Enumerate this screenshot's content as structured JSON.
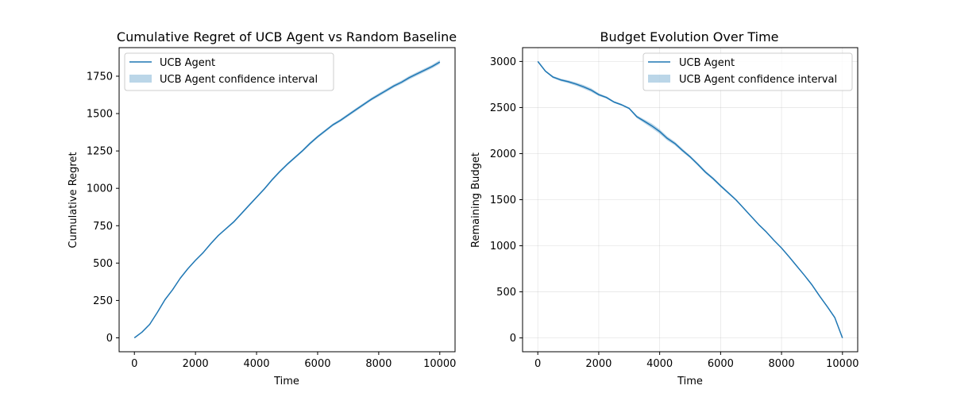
{
  "chart_data": [
    {
      "type": "line",
      "title": "Cumulative Regret of UCB Agent vs Random Baseline",
      "xlabel": "Time",
      "ylabel": "Cumulative Regret",
      "xlim": [
        -500,
        10500
      ],
      "ylim": [
        -93,
        1941
      ],
      "xticks": [
        0,
        2000,
        4000,
        6000,
        8000,
        10000
      ],
      "yticks": [
        0,
        250,
        500,
        750,
        1000,
        1250,
        1500,
        1750
      ],
      "grid": false,
      "legend_position": "upper left",
      "legend": [
        "UCB Agent",
        "UCB Agent confidence interval"
      ],
      "series": [
        {
          "name": "UCB Agent",
          "color": "#1f77b4",
          "band_color": "#1f77b4",
          "x": [
            0,
            250,
            500,
            750,
            1000,
            1250,
            1500,
            1750,
            2000,
            2250,
            2500,
            2750,
            3000,
            3250,
            3500,
            3750,
            4000,
            4250,
            4500,
            4750,
            5000,
            5250,
            5500,
            5750,
            6000,
            6250,
            6500,
            6750,
            7000,
            7250,
            7500,
            7750,
            8000,
            8250,
            8500,
            8750,
            9000,
            9250,
            9500,
            9750,
            10000
          ],
          "values": [
            0,
            38,
            90,
            170,
            255,
            322,
            398,
            462,
            518,
            570,
            630,
            685,
            730,
            775,
            830,
            885,
            940,
            995,
            1055,
            1110,
            1160,
            1205,
            1250,
            1300,
            1345,
            1385,
            1425,
            1455,
            1490,
            1525,
            1560,
            1595,
            1625,
            1655,
            1685,
            1710,
            1740,
            1765,
            1790,
            1815,
            1845
          ],
          "band_halfwidth": [
            0,
            2,
            3,
            3,
            4,
            4,
            5,
            5,
            5,
            6,
            6,
            6,
            6,
            7,
            7,
            7,
            7,
            7,
            8,
            8,
            8,
            8,
            8,
            9,
            9,
            9,
            9,
            9,
            10,
            10,
            10,
            10,
            11,
            11,
            11,
            11,
            12,
            12,
            12,
            12,
            13
          ]
        }
      ]
    },
    {
      "type": "line",
      "title": "Budget Evolution Over Time",
      "xlabel": "Time",
      "ylabel": "Remaining Budget",
      "xlim": [
        -500,
        10500
      ],
      "ylim": [
        -150,
        3150
      ],
      "xticks": [
        0,
        2000,
        4000,
        6000,
        8000,
        10000
      ],
      "yticks": [
        0,
        500,
        1000,
        1500,
        2000,
        2500,
        3000
      ],
      "grid": true,
      "legend_position": "upper right",
      "legend": [
        "UCB Agent",
        "UCB Agent confidence interval"
      ],
      "series": [
        {
          "name": "UCB Agent",
          "color": "#1f77b4",
          "band_color": "#1f77b4",
          "x": [
            0,
            250,
            500,
            750,
            1000,
            1250,
            1500,
            1750,
            2000,
            2250,
            2500,
            2750,
            3000,
            3250,
            3500,
            3750,
            4000,
            4250,
            4500,
            4750,
            5000,
            5250,
            5500,
            5750,
            6000,
            6250,
            6500,
            6750,
            7000,
            7250,
            7500,
            7750,
            8000,
            8250,
            8500,
            8750,
            9000,
            9250,
            9500,
            9750,
            10000
          ],
          "values": [
            3000,
            2895,
            2830,
            2800,
            2780,
            2755,
            2725,
            2690,
            2640,
            2610,
            2560,
            2530,
            2490,
            2400,
            2350,
            2300,
            2240,
            2165,
            2110,
            2035,
            1965,
            1885,
            1800,
            1730,
            1650,
            1575,
            1500,
            1410,
            1320,
            1230,
            1150,
            1060,
            975,
            880,
            780,
            680,
            575,
            455,
            340,
            220,
            0
          ],
          "band_halfwidth": [
            0,
            8,
            12,
            14,
            16,
            18,
            20,
            20,
            15,
            12,
            10,
            10,
            10,
            15,
            20,
            25,
            25,
            22,
            20,
            18,
            15,
            15,
            15,
            15,
            14,
            12,
            10,
            8,
            8,
            6,
            6,
            5,
            5,
            4,
            4,
            4,
            3,
            3,
            2,
            2,
            0
          ]
        }
      ]
    }
  ]
}
